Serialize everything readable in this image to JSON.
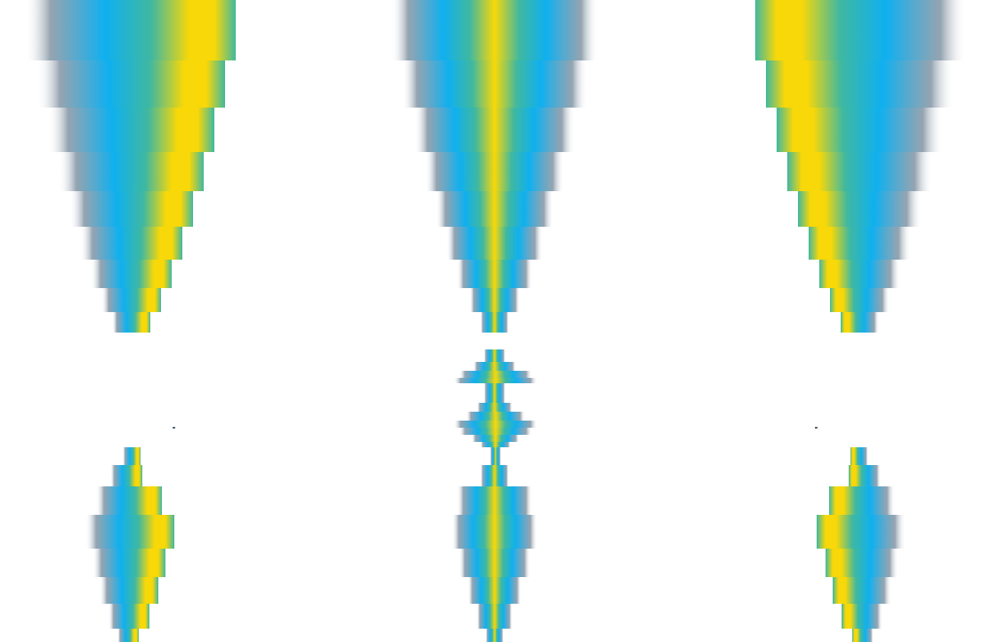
{
  "image": {
    "background": "#ffffff",
    "palette": {
      "edge": "#8a9aa8",
      "blue": "#0fb0f0",
      "teal": "#40b8a0",
      "yellow": "#f8d808"
    },
    "stair_bands": 11,
    "description_kind": "abstract-gradient-spikes"
  }
}
